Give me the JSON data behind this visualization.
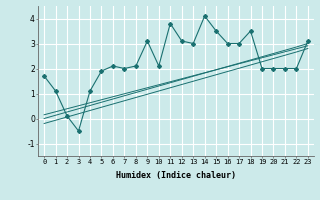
{
  "x": [
    0,
    1,
    2,
    3,
    4,
    5,
    6,
    7,
    8,
    9,
    10,
    11,
    12,
    13,
    14,
    15,
    16,
    17,
    18,
    19,
    20,
    21,
    22,
    23
  ],
  "y_main": [
    1.7,
    1.1,
    0.1,
    -0.5,
    1.1,
    1.9,
    2.1,
    2.0,
    2.1,
    3.1,
    2.1,
    3.8,
    3.1,
    3.0,
    4.1,
    3.5,
    3.0,
    3.0,
    3.5,
    2.0,
    2.0,
    2.0,
    2.0,
    3.1
  ],
  "y_reg1": [
    0.0,
    0.13,
    0.26,
    0.39,
    0.52,
    0.65,
    0.78,
    0.91,
    1.04,
    1.17,
    1.3,
    1.43,
    1.56,
    1.69,
    1.82,
    1.95,
    2.08,
    2.21,
    2.34,
    2.47,
    2.6,
    2.73,
    2.86,
    3.0
  ],
  "y_reg2": [
    -0.2,
    -0.07,
    0.06,
    0.19,
    0.32,
    0.45,
    0.58,
    0.71,
    0.84,
    0.97,
    1.1,
    1.23,
    1.36,
    1.49,
    1.62,
    1.75,
    1.88,
    2.01,
    2.14,
    2.27,
    2.4,
    2.53,
    2.66,
    2.8
  ],
  "y_reg3": [
    0.15,
    0.27,
    0.39,
    0.51,
    0.63,
    0.75,
    0.87,
    0.99,
    1.11,
    1.23,
    1.35,
    1.47,
    1.59,
    1.71,
    1.83,
    1.95,
    2.07,
    2.19,
    2.31,
    2.43,
    2.55,
    2.67,
    2.79,
    2.91
  ],
  "line_color": "#1a7070",
  "bg_color": "#cceaea",
  "grid_color": "#ffffff",
  "xlabel": "Humidex (Indice chaleur)",
  "ylim": [
    -1.5,
    4.5
  ],
  "xlim": [
    -0.5,
    23.5
  ],
  "yticks": [
    -1,
    0,
    1,
    2,
    3,
    4
  ],
  "xticks": [
    0,
    1,
    2,
    3,
    4,
    5,
    6,
    7,
    8,
    9,
    10,
    11,
    12,
    13,
    14,
    15,
    16,
    17,
    18,
    19,
    20,
    21,
    22,
    23
  ],
  "marker": "D",
  "markersize": 2.0,
  "xlabel_fontsize": 6.0,
  "tick_fontsize": 5.0
}
